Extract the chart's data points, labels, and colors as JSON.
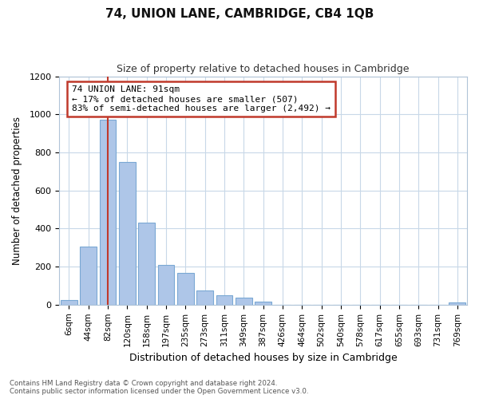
{
  "title": "74, UNION LANE, CAMBRIDGE, CB4 1QB",
  "subtitle": "Size of property relative to detached houses in Cambridge",
  "xlabel": "Distribution of detached houses by size in Cambridge",
  "ylabel": "Number of detached properties",
  "footnote1": "Contains HM Land Registry data © Crown copyright and database right 2024.",
  "footnote2": "Contains public sector information licensed under the Open Government Licence v3.0.",
  "annotation_line1": "74 UNION LANE: 91sqm",
  "annotation_line2": "← 17% of detached houses are smaller (507)",
  "annotation_line3": "83% of semi-detached houses are larger (2,492) →",
  "bar_color": "#aec6e8",
  "bar_edge_color": "#7aa8d4",
  "marker_color": "#c0392b",
  "categories": [
    "6sqm",
    "44sqm",
    "82sqm",
    "120sqm",
    "158sqm",
    "197sqm",
    "235sqm",
    "273sqm",
    "311sqm",
    "349sqm",
    "387sqm",
    "426sqm",
    "464sqm",
    "502sqm",
    "540sqm",
    "578sqm",
    "617sqm",
    "655sqm",
    "693sqm",
    "731sqm",
    "769sqm"
  ],
  "values": [
    25,
    305,
    970,
    750,
    430,
    210,
    165,
    75,
    50,
    35,
    15,
    0,
    0,
    0,
    0,
    0,
    0,
    0,
    0,
    0,
    10
  ],
  "ylim": [
    0,
    1200
  ],
  "yticks": [
    0,
    200,
    400,
    600,
    800,
    1000,
    1200
  ],
  "marker_bar_index": 2,
  "background_color": "#ffffff",
  "grid_color": "#c8d8e8"
}
